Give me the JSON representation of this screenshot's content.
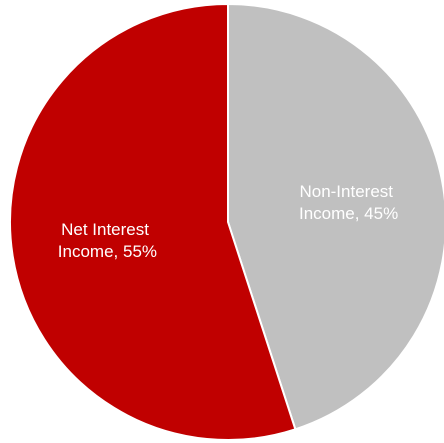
{
  "chart_data": {
    "type": "pie",
    "title": "",
    "slices": [
      {
        "label_line1": "Non-Interest",
        "label_line2": "Income, 45%",
        "value": 45,
        "color": "#c0c0c0"
      },
      {
        "label_line1": "Net Interest",
        "label_line2": "Income, 55%",
        "value": 55,
        "color": "#c00000"
      }
    ],
    "start_angle_deg": 0,
    "direction": "clockwise",
    "legend": "none",
    "slice_border_color": "#ffffff"
  }
}
